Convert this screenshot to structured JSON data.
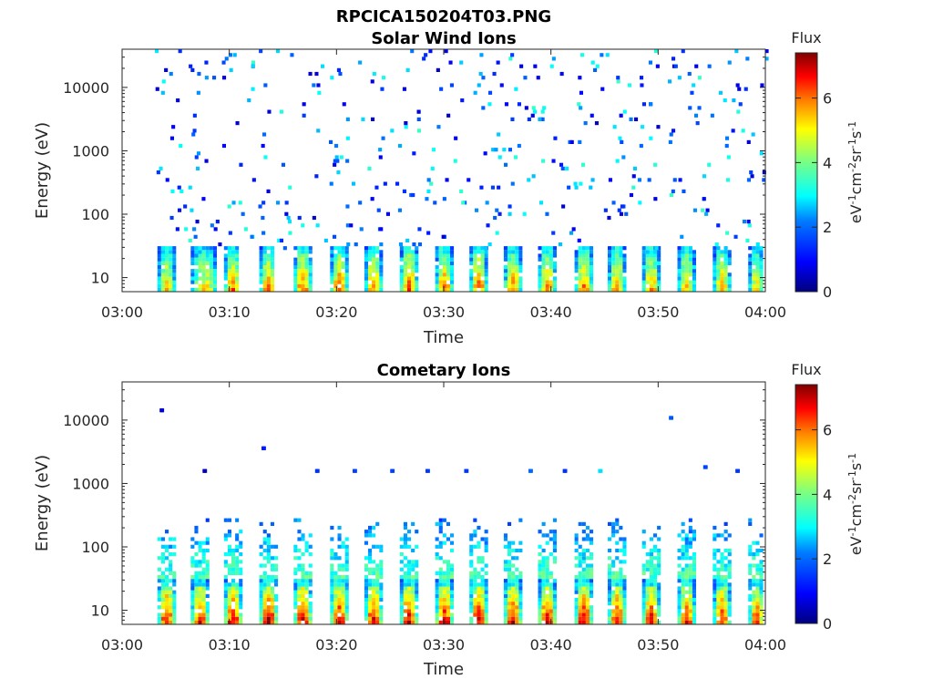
{
  "figure": {
    "title": "RPCICA150204T03.PNG",
    "colorbar_label": "Flux",
    "colorbar_units_label": "eV-1cm-2sr-1s-1",
    "colorbar_ticks": [
      "0",
      "2",
      "4",
      "6"
    ],
    "colorbar_range": [
      0,
      7.4
    ],
    "colormap": [
      "#00007f",
      "#0000ff",
      "#007fff",
      "#00ffff",
      "#7fff7f",
      "#ffff00",
      "#ff7f00",
      "#ff0000",
      "#7f0000"
    ]
  },
  "chart_data": [
    {
      "type": "heatmap",
      "title": "Solar Wind Ions",
      "xlabel": "Time",
      "ylabel": "Energy (eV)",
      "x_ticks": [
        "03:00",
        "03:10",
        "03:20",
        "03:30",
        "03:40",
        "03:50",
        "04:00"
      ],
      "x_range_minutes": [
        0,
        60
      ],
      "y_scale": "log",
      "y_ticks": [
        "10",
        "100",
        "1000",
        "10000"
      ],
      "y_range": [
        6,
        40000
      ],
      "low_energy_bursts": [
        {
          "start_min": 3.3,
          "end_min": 4.7,
          "peak_flux": 5.5
        },
        {
          "start_min": 6.4,
          "end_min": 8.6,
          "peak_flux": 5.2
        },
        {
          "start_min": 9.5,
          "end_min": 10.8,
          "peak_flux": 6.0
        },
        {
          "start_min": 12.8,
          "end_min": 14.1,
          "peak_flux": 6.0
        },
        {
          "start_min": 16.0,
          "end_min": 17.4,
          "peak_flux": 6.2
        },
        {
          "start_min": 19.4,
          "end_min": 20.8,
          "peak_flux": 6.2
        },
        {
          "start_min": 22.6,
          "end_min": 24.0,
          "peak_flux": 6.0
        },
        {
          "start_min": 25.9,
          "end_min": 27.3,
          "peak_flux": 6.2
        },
        {
          "start_min": 29.2,
          "end_min": 30.6,
          "peak_flux": 6.0
        },
        {
          "start_min": 32.4,
          "end_min": 33.8,
          "peak_flux": 6.2
        },
        {
          "start_min": 35.6,
          "end_min": 37.0,
          "peak_flux": 6.0
        },
        {
          "start_min": 38.8,
          "end_min": 40.2,
          "peak_flux": 6.0
        },
        {
          "start_min": 42.2,
          "end_min": 43.6,
          "peak_flux": 6.0
        },
        {
          "start_min": 45.3,
          "end_min": 46.7,
          "peak_flux": 5.8
        },
        {
          "start_min": 48.5,
          "end_min": 49.9,
          "peak_flux": 5.8
        },
        {
          "start_min": 51.8,
          "end_min": 53.2,
          "peak_flux": 5.6
        },
        {
          "start_min": 55.1,
          "end_min": 56.5,
          "peak_flux": 5.6
        },
        {
          "start_min": 58.4,
          "end_min": 59.6,
          "peak_flux": 5.4
        }
      ],
      "low_energy_band_ev": [
        6,
        30
      ],
      "sparse_high_energy_counts": {
        "energy_range_ev": [
          30,
          40000
        ],
        "flux_range": [
          0.5,
          3.5
        ]
      }
    },
    {
      "type": "heatmap",
      "title": "Cometary Ions",
      "xlabel": "Time",
      "ylabel": "Energy (eV)",
      "x_ticks": [
        "03:00",
        "03:10",
        "03:20",
        "03:30",
        "03:40",
        "03:50",
        "04:00"
      ],
      "x_range_minutes": [
        0,
        60
      ],
      "y_scale": "log",
      "y_ticks": [
        "10",
        "100",
        "1000",
        "10000"
      ],
      "y_range": [
        6,
        40000
      ],
      "low_energy_bursts": [
        {
          "start_min": 3.3,
          "end_min": 4.7,
          "peak_flux": 6.8
        },
        {
          "start_min": 6.4,
          "end_min": 7.8,
          "peak_flux": 6.8
        },
        {
          "start_min": 9.5,
          "end_min": 10.9,
          "peak_flux": 7.0
        },
        {
          "start_min": 12.8,
          "end_min": 14.2,
          "peak_flux": 7.2
        },
        {
          "start_min": 16.0,
          "end_min": 17.4,
          "peak_flux": 7.2
        },
        {
          "start_min": 19.4,
          "end_min": 20.8,
          "peak_flux": 7.0
        },
        {
          "start_min": 22.6,
          "end_min": 24.0,
          "peak_flux": 7.0
        },
        {
          "start_min": 25.9,
          "end_min": 27.3,
          "peak_flux": 7.0
        },
        {
          "start_min": 29.2,
          "end_min": 30.6,
          "peak_flux": 7.0
        },
        {
          "start_min": 32.4,
          "end_min": 33.8,
          "peak_flux": 7.0
        },
        {
          "start_min": 35.6,
          "end_min": 37.0,
          "peak_flux": 7.0
        },
        {
          "start_min": 38.8,
          "end_min": 40.2,
          "peak_flux": 7.0
        },
        {
          "start_min": 42.2,
          "end_min": 43.6,
          "peak_flux": 7.0
        },
        {
          "start_min": 45.3,
          "end_min": 46.7,
          "peak_flux": 6.8
        },
        {
          "start_min": 48.5,
          "end_min": 49.9,
          "peak_flux": 6.8
        },
        {
          "start_min": 51.8,
          "end_min": 53.2,
          "peak_flux": 6.6
        },
        {
          "start_min": 55.1,
          "end_min": 56.5,
          "peak_flux": 6.6
        },
        {
          "start_min": 58.4,
          "end_min": 59.6,
          "peak_flux": 6.4
        }
      ],
      "low_energy_band_ev": [
        6,
        30
      ],
      "mid_energy_band_ev": [
        30,
        250
      ],
      "isolated_high_energy_points": [
        {
          "time_min": 3.5,
          "energy_ev": 13500,
          "flux": 0.6
        },
        {
          "time_min": 7.5,
          "energy_ev": 1600,
          "flux": 0.4
        },
        {
          "time_min": 13.0,
          "energy_ev": 3600,
          "flux": 1.2
        },
        {
          "time_min": 18.0,
          "energy_ev": 1600,
          "flux": 1.4
        },
        {
          "time_min": 21.5,
          "energy_ev": 1650,
          "flux": 1.6
        },
        {
          "time_min": 25.0,
          "energy_ev": 1650,
          "flux": 1.6
        },
        {
          "time_min": 28.3,
          "energy_ev": 1650,
          "flux": 1.5
        },
        {
          "time_min": 31.9,
          "energy_ev": 1650,
          "flux": 1.5
        },
        {
          "time_min": 37.9,
          "energy_ev": 1650,
          "flux": 2.0
        },
        {
          "time_min": 41.1,
          "energy_ev": 1650,
          "flux": 1.4
        },
        {
          "time_min": 44.4,
          "energy_ev": 1650,
          "flux": 2.8
        },
        {
          "time_min": 51.0,
          "energy_ev": 10800,
          "flux": 1.8
        },
        {
          "time_min": 54.2,
          "energy_ev": 1800,
          "flux": 1.6
        },
        {
          "time_min": 57.2,
          "energy_ev": 1600,
          "flux": 1.5
        }
      ]
    }
  ]
}
